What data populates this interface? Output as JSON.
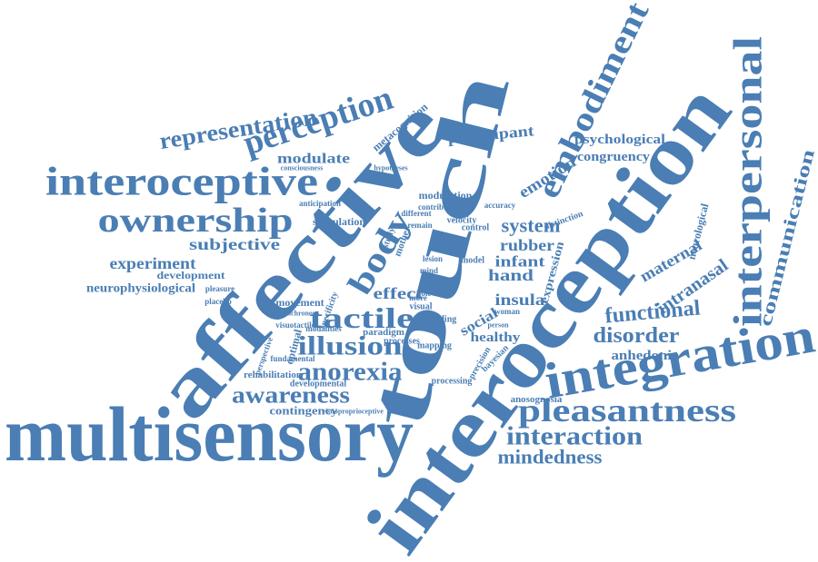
{
  "words": [
    "multisensory",
    "affective",
    "touch",
    "interoception",
    "integration",
    "interpersonal",
    "embodiment",
    "interoceptive",
    "ownership",
    "perception",
    "representation",
    "pleasantness",
    "interaction",
    "mindedness",
    "functional",
    "disorder",
    "anhedonia",
    "intranasal",
    "maternal",
    "communication",
    "psychological",
    "congruency",
    "participant",
    "emotion",
    "system",
    "rubber",
    "infant",
    "hand",
    "expression",
    "insula",
    "social",
    "healthy",
    "tactile",
    "illusion",
    "anorexia",
    "awareness",
    "contingency",
    "visuoproprioceptive",
    "subjective",
    "experiment",
    "development",
    "neurophysiological",
    "modulate",
    "metacognition",
    "body",
    "effect",
    "movement",
    "rehabilitation",
    "optimal",
    "modulation",
    "control",
    "velocity",
    "stimulation",
    "paradigm",
    "processes",
    "finding",
    "mapping",
    "processing",
    "anosognosia",
    "developmental",
    "woman",
    "model",
    "visual",
    "more",
    "self",
    "role",
    "study",
    "mother",
    "anticipation",
    "consciousness",
    "neurological",
    "distinction",
    "bayesian",
    "pleasure",
    "placebo",
    "specificity",
    "modalities",
    "lesion",
    "contribute",
    "different",
    "remain",
    "mind",
    "precision",
    "accuracy",
    "person",
    "hypotheses",
    "fundamental",
    "visuotactile",
    "synchronous",
    "perspective"
  ]
}
